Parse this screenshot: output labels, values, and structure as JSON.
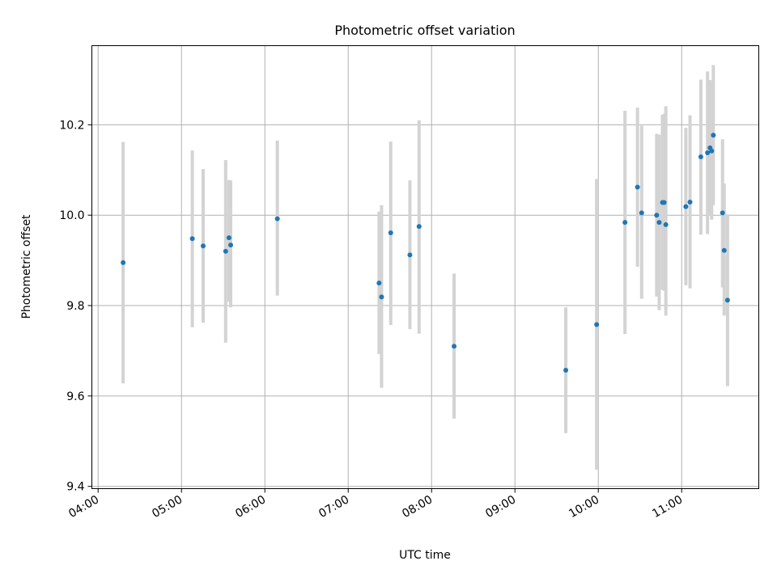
{
  "chart_data": {
    "type": "scatter",
    "title": "Photometric offset variation",
    "xlabel": "UTC time",
    "ylabel": "Photometric offset",
    "x_unit": "hour_of_day",
    "xlim": [
      3.925,
      11.925
    ],
    "ylim": [
      9.395,
      10.375
    ],
    "grid": true,
    "x_ticks": [
      4,
      5,
      6,
      7,
      8,
      9,
      10,
      11
    ],
    "x_tick_labels": [
      "04:00",
      "05:00",
      "06:00",
      "07:00",
      "08:00",
      "09:00",
      "10:00",
      "11:00"
    ],
    "y_ticks": [
      9.4,
      9.6,
      9.8,
      10.0,
      10.2
    ],
    "y_tick_labels": [
      "9.4",
      "9.6",
      "9.8",
      "10.0",
      "10.2"
    ],
    "colors": {
      "point": "#1f77b4",
      "errorbar": "#d3d3d3",
      "grid": "#b0b0b0"
    },
    "points": [
      {
        "x": 4.3,
        "y": 9.895,
        "lo": 9.628,
        "hi": 10.162
      },
      {
        "x": 5.13,
        "y": 9.948,
        "lo": 9.752,
        "hi": 10.143
      },
      {
        "x": 5.26,
        "y": 9.932,
        "lo": 9.762,
        "hi": 10.102
      },
      {
        "x": 5.53,
        "y": 9.92,
        "lo": 9.718,
        "hi": 10.122
      },
      {
        "x": 5.57,
        "y": 9.95,
        "lo": 9.808,
        "hi": 10.078
      },
      {
        "x": 5.59,
        "y": 9.934,
        "lo": 9.796,
        "hi": 10.077
      },
      {
        "x": 6.15,
        "y": 9.992,
        "lo": 9.822,
        "hi": 10.165
      },
      {
        "x": 7.37,
        "y": 9.85,
        "lo": 9.693,
        "hi": 10.008
      },
      {
        "x": 7.4,
        "y": 9.819,
        "lo": 9.618,
        "hi": 10.022
      },
      {
        "x": 7.51,
        "y": 9.961,
        "lo": 9.757,
        "hi": 10.163
      },
      {
        "x": 7.74,
        "y": 9.912,
        "lo": 9.748,
        "hi": 10.077
      },
      {
        "x": 7.85,
        "y": 9.975,
        "lo": 9.738,
        "hi": 10.21
      },
      {
        "x": 8.27,
        "y": 9.71,
        "lo": 9.55,
        "hi": 9.871
      },
      {
        "x": 9.61,
        "y": 9.657,
        "lo": 9.518,
        "hi": 9.796
      },
      {
        "x": 9.98,
        "y": 9.758,
        "lo": 9.437,
        "hi": 10.08
      },
      {
        "x": 10.32,
        "y": 9.984,
        "lo": 9.737,
        "hi": 10.231
      },
      {
        "x": 10.47,
        "y": 10.062,
        "lo": 9.886,
        "hi": 10.238
      },
      {
        "x": 10.52,
        "y": 10.005,
        "lo": 9.815,
        "hi": 10.198
      },
      {
        "x": 10.7,
        "y": 10.0,
        "lo": 9.82,
        "hi": 10.18
      },
      {
        "x": 10.73,
        "y": 9.984,
        "lo": 9.79,
        "hi": 10.178
      },
      {
        "x": 10.77,
        "y": 10.028,
        "lo": 9.835,
        "hi": 10.222
      },
      {
        "x": 10.79,
        "y": 10.028,
        "lo": 9.833,
        "hi": 10.224
      },
      {
        "x": 10.81,
        "y": 9.979,
        "lo": 9.778,
        "hi": 10.241
      },
      {
        "x": 11.05,
        "y": 10.019,
        "lo": 9.845,
        "hi": 10.193
      },
      {
        "x": 11.1,
        "y": 10.029,
        "lo": 9.838,
        "hi": 10.221
      },
      {
        "x": 11.23,
        "y": 10.129,
        "lo": 9.957,
        "hi": 10.3
      },
      {
        "x": 11.31,
        "y": 10.138,
        "lo": 9.958,
        "hi": 10.318
      },
      {
        "x": 11.34,
        "y": 10.149,
        "lo": 10.0,
        "hi": 10.299
      },
      {
        "x": 11.36,
        "y": 10.142,
        "lo": 9.99,
        "hi": 10.292
      },
      {
        "x": 11.38,
        "y": 10.177,
        "lo": 10.022,
        "hi": 10.332
      },
      {
        "x": 11.49,
        "y": 10.005,
        "lo": 9.84,
        "hi": 10.168
      },
      {
        "x": 11.51,
        "y": 9.922,
        "lo": 9.778,
        "hi": 10.07
      },
      {
        "x": 11.55,
        "y": 9.812,
        "lo": 9.622,
        "hi": 10.002
      }
    ]
  }
}
